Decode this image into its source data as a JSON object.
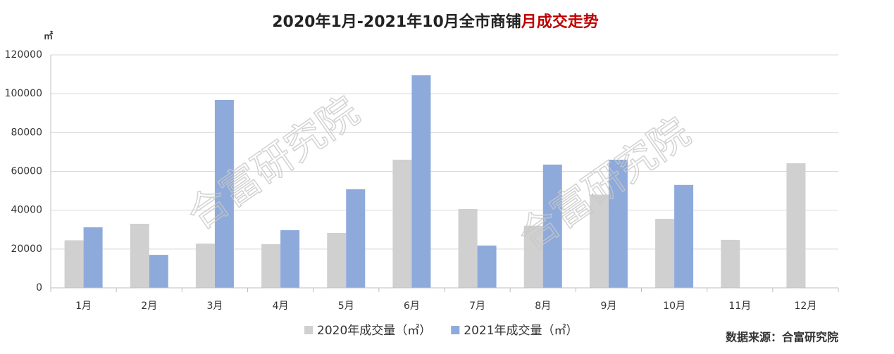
{
  "chart_data": {
    "type": "bar",
    "title": "2020年1月-2021年10月全市商铺",
    "title_highlight": "月成交走势",
    "title_highlight_color": "#c00000",
    "y_unit": "㎡",
    "categories": [
      "1月",
      "2月",
      "3月",
      "4月",
      "5月",
      "6月",
      "7月",
      "8月",
      "9月",
      "10月",
      "11月",
      "12月"
    ],
    "series": [
      {
        "name": "2020年成交量（㎡）",
        "color": "#d0d0d0",
        "values": [
          24500,
          33000,
          22800,
          22500,
          28300,
          66000,
          40600,
          32000,
          48000,
          35500,
          24700,
          64200
        ]
      },
      {
        "name": "2021年成交量（㎡）",
        "color": "#8eaadb",
        "values": [
          31200,
          17000,
          96800,
          29700,
          50800,
          109500,
          21800,
          63500,
          66000,
          53000,
          null,
          null
        ]
      }
    ],
    "ylim": [
      0,
      120000
    ],
    "yticks": [
      0,
      20000,
      40000,
      60000,
      80000,
      100000,
      120000
    ],
    "grid": true,
    "legend": "bottom",
    "watermark": "合富研究院",
    "source": "数据来源：合富研究院"
  }
}
